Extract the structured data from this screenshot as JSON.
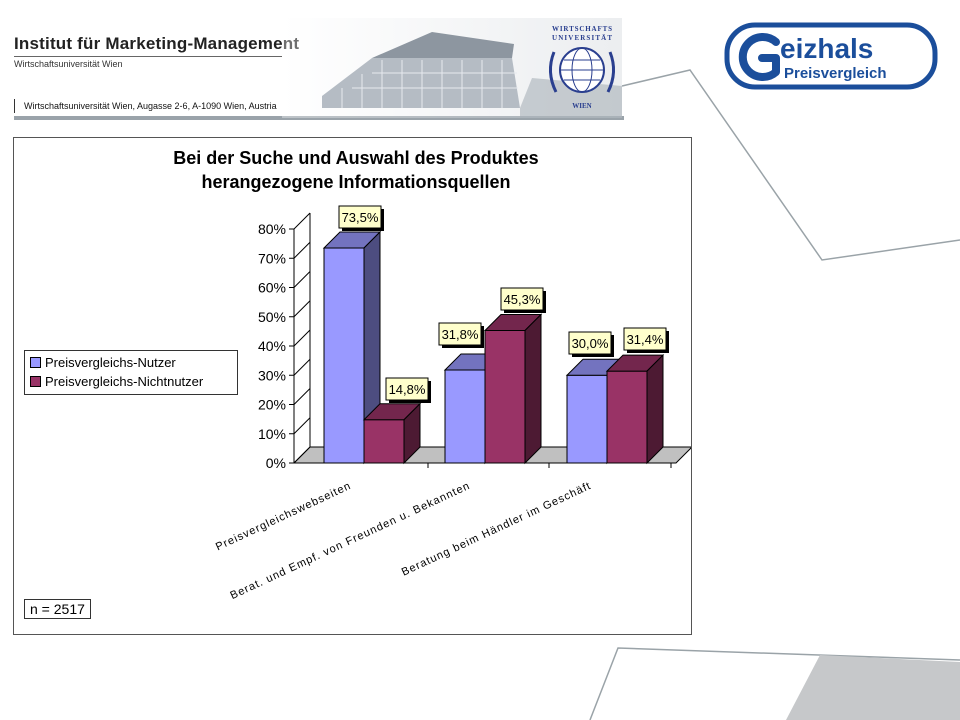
{
  "header": {
    "institute": "Institut für Marketing-Management",
    "university": "Wirtschaftsuniversität Wien",
    "address": "Wirtschaftsuniversität Wien, Augasse 2-6, A-1090 Wien, Austria"
  },
  "seal": {
    "top_text": "WIRTSCHAFTS UNIVERSITÄT",
    "bottom_text": "WIEN"
  },
  "logo": {
    "brand": "Geizhals",
    "tagline": "Preisvergleich",
    "color": "#1b4e9b"
  },
  "chart_data": {
    "type": "bar",
    "title": "Bei der Suche und Auswahl des Produktes herangezogene Informationsquellen",
    "title_lines": [
      "Bei der Suche und Auswahl des Produktes",
      "herangezogene Informationsquellen"
    ],
    "categories": [
      "Preisvergleichswebseiten",
      "Berat. und Empf. von Freunden u. Bekannten",
      "Beratung beim Händler im Geschäft"
    ],
    "series": [
      {
        "name": "Preisvergleichs-Nutzer",
        "values": [
          73.5,
          31.8,
          30.0
        ],
        "labels": [
          "73,5%",
          "31,8%",
          "30,0%"
        ],
        "color": "#9999ff"
      },
      {
        "name": "Preisvergleichs-Nichtnutzer",
        "values": [
          14.8,
          45.3,
          31.4
        ],
        "labels": [
          "14,8%",
          "45,3%",
          "31,4%"
        ],
        "color": "#993366"
      }
    ],
    "ylim": [
      0,
      80
    ],
    "yticks": [
      0,
      10,
      20,
      30,
      40,
      50,
      60,
      70,
      80
    ],
    "ytick_labels": [
      "0%",
      "10%",
      "20%",
      "30%",
      "40%",
      "50%",
      "60%",
      "70%",
      "80%"
    ],
    "legend_position": "left",
    "grid": false,
    "three_d": true,
    "label_box_color": "#ffffcc",
    "annotation": "n = 2517"
  }
}
